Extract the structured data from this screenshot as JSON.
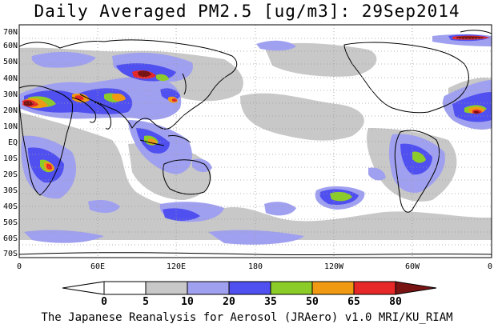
{
  "title": "Daily Averaged PM2.5 [ug/m3]: 29Sep2014",
  "footer": "The Japanese Reanalysis for Aerosol (JRAero) v1.0 MRI/KU_RIAM",
  "lat_labels": [
    "70N",
    "60N",
    "50N",
    "40N",
    "30N",
    "20N",
    "10N",
    "EQ",
    "10S",
    "20S",
    "30S",
    "40S",
    "50S",
    "60S",
    "70S"
  ],
  "lon_labels": [
    "0",
    "60E",
    "120E",
    "180",
    "120W",
    "60W",
    "0"
  ],
  "legend": {
    "ticks": [
      "0",
      "5",
      "10",
      "20",
      "35",
      "50",
      "65",
      "80"
    ],
    "colors": [
      "#ffffff",
      "#c8c8c8",
      "#a0a0f0",
      "#5050f0",
      "#8ccc28",
      "#f09a14",
      "#e62828",
      "#781414"
    ]
  }
}
